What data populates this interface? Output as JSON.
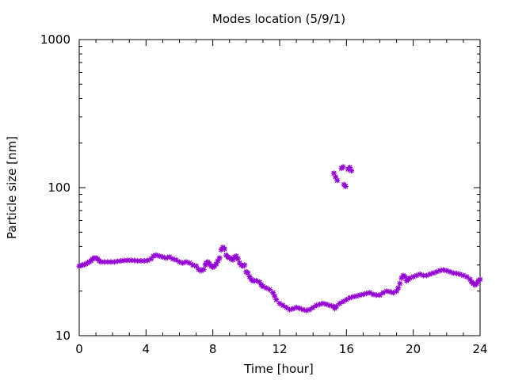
{
  "chart_data": {
    "type": "scatter",
    "title": "Modes location (5/9/1)",
    "xlabel": "Time [hour]",
    "ylabel": "Particle size [nm]",
    "xlim": [
      0,
      24
    ],
    "ylim": [
      10,
      1000
    ],
    "yscale": "log",
    "grid": false,
    "legend": "none",
    "x_ticks": [
      0,
      4,
      8,
      12,
      16,
      20,
      24
    ],
    "x_tick_labels": [
      "0",
      "4",
      "8",
      "12",
      "16",
      "20",
      "24"
    ],
    "y_ticks": [
      10,
      100,
      1000
    ],
    "y_tick_labels": [
      "10",
      "100",
      "1000"
    ],
    "marker_color": "#9400d3",
    "series": [
      {
        "values": [
          [
            0.0,
            29.5
          ],
          [
            0.1,
            29.8
          ],
          [
            0.2,
            30.0
          ],
          [
            0.3,
            30.2
          ],
          [
            0.4,
            30.5
          ],
          [
            0.5,
            31.0
          ],
          [
            0.6,
            31.5
          ],
          [
            0.7,
            32.0
          ],
          [
            0.8,
            33.0
          ],
          [
            0.9,
            33.5
          ],
          [
            1.0,
            33.5
          ],
          [
            1.1,
            33.0
          ],
          [
            1.2,
            32.0
          ],
          [
            1.3,
            31.5
          ],
          [
            1.5,
            31.5
          ],
          [
            1.7,
            31.5
          ],
          [
            1.9,
            31.5
          ],
          [
            2.1,
            31.5
          ],
          [
            2.3,
            31.8
          ],
          [
            2.5,
            32.0
          ],
          [
            2.7,
            32.2
          ],
          [
            2.9,
            32.3
          ],
          [
            3.1,
            32.3
          ],
          [
            3.3,
            32.2
          ],
          [
            3.5,
            32.0
          ],
          [
            3.7,
            32.0
          ],
          [
            3.9,
            32.0
          ],
          [
            4.1,
            32.2
          ],
          [
            4.3,
            33.0
          ],
          [
            4.45,
            34.5
          ],
          [
            4.6,
            35.0
          ],
          [
            4.8,
            34.5
          ],
          [
            5.0,
            34.0
          ],
          [
            5.2,
            33.5
          ],
          [
            5.4,
            34.0
          ],
          [
            5.6,
            33.0
          ],
          [
            5.8,
            32.5
          ],
          [
            6.0,
            31.5
          ],
          [
            6.2,
            31.0
          ],
          [
            6.4,
            31.5
          ],
          [
            6.6,
            31.0
          ],
          [
            6.8,
            30.0
          ],
          [
            7.0,
            29.5
          ],
          [
            7.15,
            28.0
          ],
          [
            7.3,
            27.5
          ],
          [
            7.45,
            28.0
          ],
          [
            7.55,
            30.0
          ],
          [
            7.6,
            31.0
          ],
          [
            7.7,
            31.5
          ],
          [
            7.8,
            30.5
          ],
          [
            7.9,
            29.5
          ],
          [
            8.0,
            29.0
          ],
          [
            8.1,
            29.5
          ],
          [
            8.2,
            30.5
          ],
          [
            8.3,
            32.0
          ],
          [
            8.4,
            33.5
          ],
          [
            8.5,
            38.0
          ],
          [
            8.6,
            39.5
          ],
          [
            8.7,
            38.5
          ],
          [
            8.8,
            35.0
          ],
          [
            8.9,
            34.0
          ],
          [
            9.0,
            33.5
          ],
          [
            9.1,
            33.0
          ],
          [
            9.2,
            32.5
          ],
          [
            9.3,
            34.0
          ],
          [
            9.4,
            34.5
          ],
          [
            9.5,
            33.0
          ],
          [
            9.6,
            31.0
          ],
          [
            9.7,
            30.0
          ],
          [
            9.8,
            29.5
          ],
          [
            9.9,
            30.0
          ],
          [
            10.0,
            27.0
          ],
          [
            10.1,
            26.5
          ],
          [
            10.2,
            25.0
          ],
          [
            10.3,
            24.0
          ],
          [
            10.4,
            23.5
          ],
          [
            10.5,
            23.5
          ],
          [
            10.6,
            23.5
          ],
          [
            10.8,
            23.0
          ],
          [
            10.9,
            22.0
          ],
          [
            11.0,
            21.5
          ],
          [
            11.2,
            21.0
          ],
          [
            11.4,
            20.5
          ],
          [
            11.6,
            19.5
          ],
          [
            11.7,
            18.5
          ],
          [
            11.8,
            17.5
          ],
          [
            12.0,
            16.5
          ],
          [
            12.2,
            16.0
          ],
          [
            12.4,
            15.5
          ],
          [
            12.6,
            15.0
          ],
          [
            12.8,
            15.2
          ],
          [
            13.0,
            15.5
          ],
          [
            13.2,
            15.3
          ],
          [
            13.4,
            15.0
          ],
          [
            13.6,
            14.8
          ],
          [
            13.8,
            15.0
          ],
          [
            14.0,
            15.5
          ],
          [
            14.2,
            16.0
          ],
          [
            14.4,
            16.3
          ],
          [
            14.6,
            16.5
          ],
          [
            14.8,
            16.3
          ],
          [
            15.0,
            16.0
          ],
          [
            15.2,
            15.8
          ],
          [
            15.3,
            15.3
          ],
          [
            15.4,
            15.8
          ],
          [
            15.6,
            16.5
          ],
          [
            15.8,
            17.0
          ],
          [
            16.0,
            17.5
          ],
          [
            16.2,
            18.0
          ],
          [
            16.4,
            18.3
          ],
          [
            16.6,
            18.5
          ],
          [
            16.8,
            18.8
          ],
          [
            17.0,
            19.0
          ],
          [
            17.2,
            19.3
          ],
          [
            17.4,
            19.5
          ],
          [
            17.6,
            19.0
          ],
          [
            17.8,
            18.8
          ],
          [
            18.0,
            18.8
          ],
          [
            18.2,
            19.5
          ],
          [
            18.4,
            20.0
          ],
          [
            18.6,
            19.8
          ],
          [
            18.8,
            19.5
          ],
          [
            19.0,
            20.0
          ],
          [
            19.1,
            21.0
          ],
          [
            19.2,
            22.5
          ],
          [
            19.3,
            24.5
          ],
          [
            19.4,
            25.5
          ],
          [
            19.5,
            25.0
          ],
          [
            19.6,
            23.5
          ],
          [
            19.7,
            24.0
          ],
          [
            19.8,
            24.5
          ],
          [
            20.0,
            25.0
          ],
          [
            20.2,
            25.5
          ],
          [
            20.4,
            26.0
          ],
          [
            20.6,
            25.5
          ],
          [
            20.8,
            25.5
          ],
          [
            21.0,
            26.0
          ],
          [
            21.2,
            26.5
          ],
          [
            21.4,
            27.0
          ],
          [
            21.6,
            27.5
          ],
          [
            21.8,
            27.8
          ],
          [
            22.0,
            27.5
          ],
          [
            22.2,
            27.0
          ],
          [
            22.4,
            26.5
          ],
          [
            22.6,
            26.3
          ],
          [
            22.8,
            26.0
          ],
          [
            23.0,
            25.5
          ],
          [
            23.2,
            25.0
          ],
          [
            23.4,
            24.0
          ],
          [
            23.5,
            23.0
          ],
          [
            23.6,
            22.5
          ],
          [
            23.7,
            22.0
          ],
          [
            23.8,
            22.5
          ],
          [
            23.9,
            23.5
          ],
          [
            24.0,
            24.0
          ],
          [
            15.25,
            125.0
          ],
          [
            15.35,
            118.0
          ],
          [
            15.45,
            112.0
          ],
          [
            15.7,
            135.0
          ],
          [
            15.8,
            138.0
          ],
          [
            15.85,
            105.0
          ],
          [
            15.95,
            102.0
          ],
          [
            16.1,
            133.0
          ],
          [
            16.2,
            137.0
          ],
          [
            16.3,
            130.0
          ]
        ]
      }
    ]
  }
}
